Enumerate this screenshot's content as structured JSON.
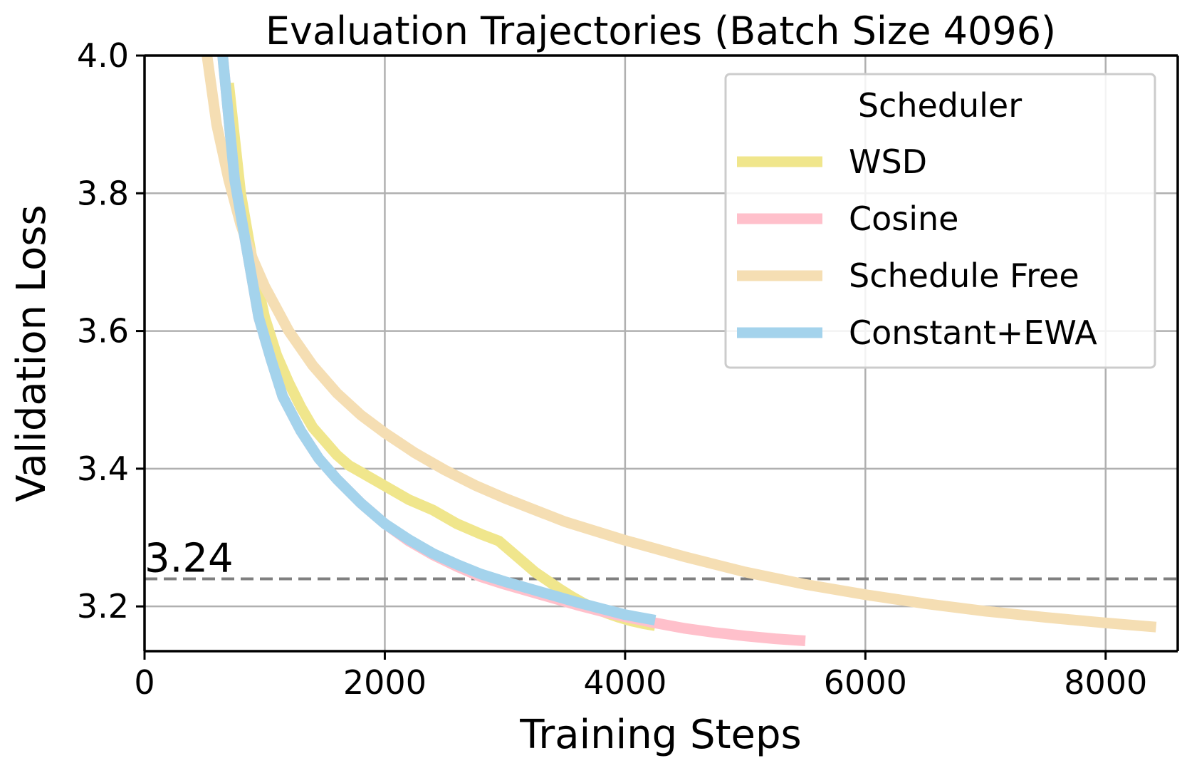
{
  "chart_data": {
    "type": "line",
    "title": "Evaluation Trajectories (Batch Size 4096)",
    "xlabel": "Training Steps",
    "ylabel": "Validation Loss",
    "xlim": [
      0,
      8600
    ],
    "ylim": [
      3.135,
      4.0
    ],
    "xticks": [
      0,
      2000,
      4000,
      6000,
      8000
    ],
    "xtick_labels": [
      "0",
      "2000",
      "4000",
      "6000",
      "8000"
    ],
    "yticks": [
      3.2,
      3.4,
      3.6,
      3.8,
      4.0
    ],
    "ytick_labels": [
      "3.2",
      "3.4",
      "3.6",
      "3.8",
      "4.0"
    ],
    "grid": true,
    "legend": {
      "title": "Scheduler",
      "position": "top-right"
    },
    "reference_line": {
      "y": 3.24,
      "label": "3.24",
      "color": "#808080",
      "style": "dashed"
    },
    "series": [
      {
        "name": "WSD",
        "color": "#f0e68c",
        "x": [
          700,
          800,
          900,
          1000,
          1100,
          1200,
          1300,
          1400,
          1500,
          1600,
          1700,
          1800,
          1900,
          2000,
          2200,
          2400,
          2600,
          2800,
          2950,
          3050,
          3150,
          3250,
          3350,
          3450,
          3550,
          3650,
          3750,
          3850,
          3950,
          4050,
          4150,
          4250
        ],
        "y": [
          3.96,
          3.8,
          3.7,
          3.62,
          3.565,
          3.525,
          3.49,
          3.46,
          3.44,
          3.42,
          3.405,
          3.395,
          3.385,
          3.375,
          3.355,
          3.34,
          3.32,
          3.305,
          3.295,
          3.28,
          3.265,
          3.25,
          3.238,
          3.226,
          3.215,
          3.205,
          3.197,
          3.19,
          3.184,
          3.179,
          3.175,
          3.172
        ]
      },
      {
        "name": "Cosine",
        "color": "#ffc0cb",
        "x": [
          650,
          750,
          850,
          950,
          1050,
          1150,
          1300,
          1450,
          1600,
          1800,
          2000,
          2200,
          2400,
          2600,
          2800,
          3000,
          3200,
          3400,
          3600,
          3800,
          4000,
          4250,
          4500,
          4750,
          5000,
          5250,
          5500
        ],
        "y": [
          4.0,
          3.82,
          3.72,
          3.62,
          3.56,
          3.505,
          3.455,
          3.415,
          3.385,
          3.35,
          3.32,
          3.295,
          3.275,
          3.258,
          3.243,
          3.232,
          3.222,
          3.212,
          3.202,
          3.193,
          3.185,
          3.176,
          3.168,
          3.162,
          3.157,
          3.153,
          3.15
        ]
      },
      {
        "name": "Schedule Free",
        "color": "#f5deb3",
        "x": [
          520,
          600,
          700,
          800,
          900,
          1000,
          1200,
          1400,
          1600,
          1800,
          2000,
          2250,
          2500,
          2750,
          3000,
          3500,
          4000,
          4500,
          5000,
          5500,
          6000,
          6500,
          7000,
          7500,
          8000,
          8420
        ],
        "y": [
          4.0,
          3.9,
          3.82,
          3.755,
          3.705,
          3.665,
          3.6,
          3.55,
          3.51,
          3.478,
          3.452,
          3.423,
          3.398,
          3.376,
          3.357,
          3.323,
          3.296,
          3.272,
          3.25,
          3.232,
          3.217,
          3.204,
          3.193,
          3.184,
          3.176,
          3.17
        ]
      },
      {
        "name": "Constant+EWA",
        "color": "#a4d3ec",
        "x": [
          650,
          750,
          850,
          950,
          1050,
          1150,
          1300,
          1450,
          1600,
          1800,
          2000,
          2200,
          2400,
          2600,
          2800,
          3000,
          3200,
          3400,
          3600,
          3800,
          4000,
          4250
        ],
        "y": [
          4.0,
          3.82,
          3.72,
          3.62,
          3.56,
          3.505,
          3.455,
          3.415,
          3.385,
          3.35,
          3.32,
          3.297,
          3.277,
          3.261,
          3.247,
          3.236,
          3.226,
          3.216,
          3.206,
          3.197,
          3.188,
          3.18
        ]
      }
    ]
  }
}
